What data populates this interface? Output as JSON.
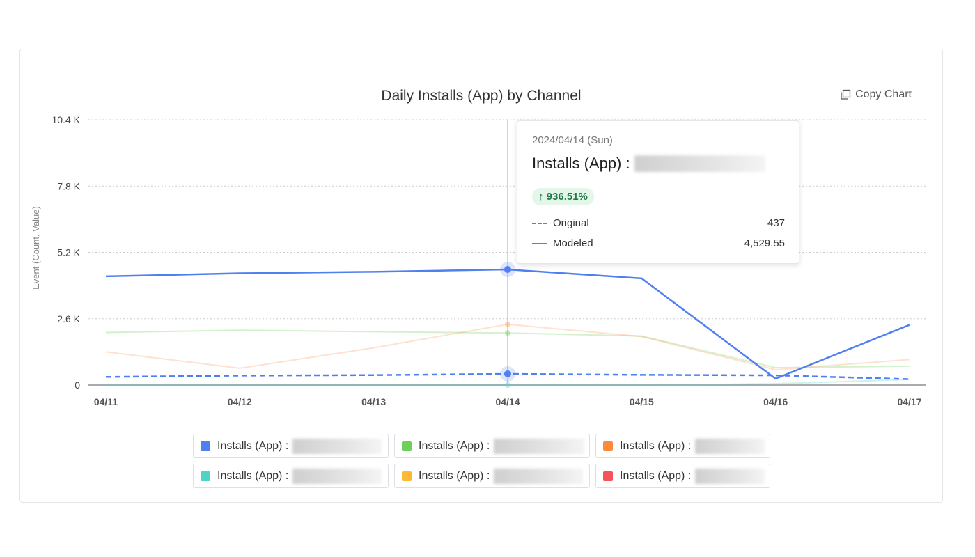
{
  "chart_data": {
    "type": "line",
    "title": "Daily Installs (App) by Channel",
    "ylabel": "Event (Count, Value)",
    "xlabel": "",
    "categories": [
      "04/11",
      "04/12",
      "04/13",
      "04/14",
      "04/15",
      "04/16",
      "04/17"
    ],
    "y_ticks": [
      "0",
      "2.6 K",
      "5.2 K",
      "7.8 K",
      "10.4 K"
    ],
    "y_tick_values": [
      0,
      2600,
      5200,
      7800,
      10400
    ],
    "ylim": [
      0,
      10400
    ],
    "grid": true,
    "series": [
      {
        "name": "Modeled",
        "color": "#4f7ff0",
        "style": "solid",
        "opacity": 1,
        "values": [
          4260,
          4380,
          4440,
          4529.55,
          4180,
          250,
          2360
        ]
      },
      {
        "name": "Original",
        "color": "#4f7ff0",
        "style": "dashed",
        "opacity": 1,
        "values": [
          320,
          370,
          390,
          437,
          400,
          380,
          230
        ]
      },
      {
        "color": "#6cd05b",
        "style": "solid",
        "opacity": 0.3,
        "values": [
          2060,
          2150,
          2090,
          2040,
          1920,
          680,
          740
        ]
      },
      {
        "color": "#ff9a5a",
        "style": "solid",
        "opacity": 0.3,
        "values": [
          1300,
          660,
          1460,
          2380,
          1900,
          600,
          1000
        ]
      },
      {
        "color": "#4dd4c6",
        "style": "solid",
        "opacity": 0.3,
        "values": [
          0,
          0,
          0,
          0,
          0,
          50,
          220
        ]
      }
    ]
  },
  "toolbar": {
    "copy_label": "Copy Chart",
    "copy_icon": "copy-icon"
  },
  "tooltip": {
    "date": "2024/04/14 (Sun)",
    "metric": "Installs (App) :",
    "change": "↑ 936.51%",
    "rows": [
      {
        "label": "Original",
        "value": "437",
        "style": "dashed"
      },
      {
        "label": "Modeled",
        "value": "4,529.55",
        "style": "solid"
      }
    ]
  },
  "legend": {
    "label": "Installs (App) :",
    "items": [
      {
        "color": "#4f7ff0"
      },
      {
        "color": "#6cd05b"
      },
      {
        "color": "#ff8a3d"
      },
      {
        "color": "#4dd4c6"
      },
      {
        "color": "#ffb833"
      },
      {
        "color": "#f5545a"
      }
    ]
  },
  "hover_index": 3
}
